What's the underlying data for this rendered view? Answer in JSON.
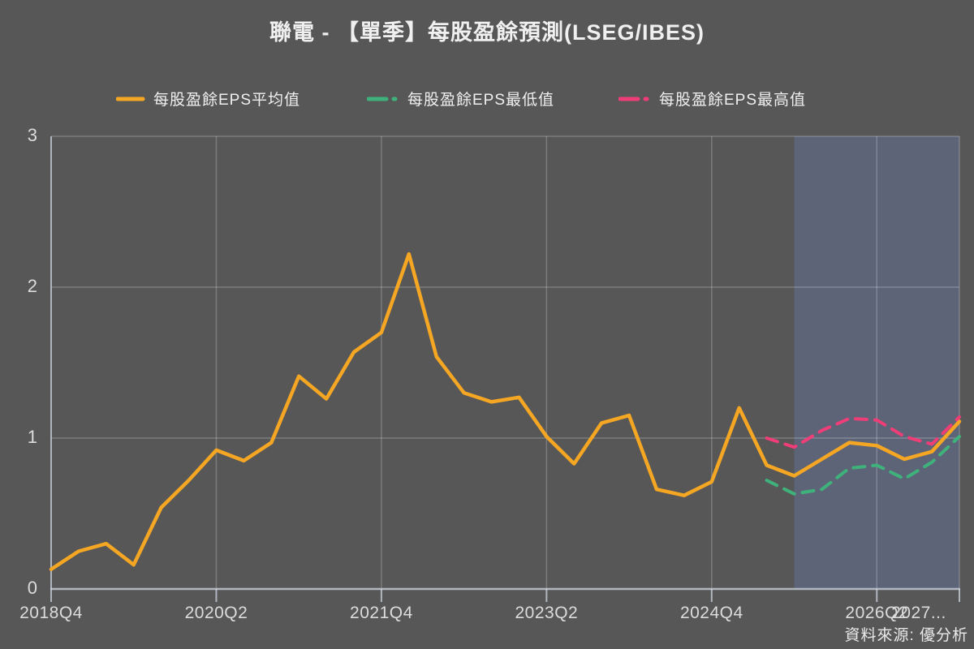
{
  "title": "聯電 - 【單季】每股盈餘預測(LSEG/IBES)",
  "source": "資料來源: 優分析",
  "colors": {
    "background": "#575757",
    "text": "#ECECEC",
    "tick_text": "#DCDCDC",
    "avg_line": "#F5A623",
    "min_line": "#3FB27B",
    "max_line": "#EE3D77",
    "forecast_region": "#5D6478",
    "gridline": "rgba(255,255,255,0.22)",
    "axis": "rgba(205,212,224,0.75)"
  },
  "legend": [
    {
      "label": "每股盈餘EPS平均值",
      "color": "#F5A623",
      "style": "solid"
    },
    {
      "label": "每股盈餘EPS最低值",
      "color": "#3FB27B",
      "style": "dashed"
    },
    {
      "label": "每股盈餘EPS最高值",
      "color": "#EE3D77",
      "style": "dashed"
    }
  ],
  "chart_data": {
    "type": "line",
    "title": "聯電 - 【單季】每股盈餘預測(LSEG/IBES)",
    "xlabel": "",
    "ylabel": "",
    "ylim": [
      0,
      3
    ],
    "y_ticks": [
      0,
      1,
      2,
      3
    ],
    "grid": true,
    "legend_position": "top",
    "categories": [
      "2018Q4",
      "2019Q1",
      "2019Q2",
      "2019Q3",
      "2019Q4",
      "2020Q1",
      "2020Q2",
      "2020Q3",
      "2020Q4",
      "2021Q1",
      "2021Q2",
      "2021Q3",
      "2021Q4",
      "2022Q1",
      "2022Q2",
      "2022Q3",
      "2022Q4",
      "2023Q1",
      "2023Q2",
      "2023Q3",
      "2023Q4",
      "2024Q1",
      "2024Q2",
      "2024Q3",
      "2024Q4",
      "2025Q1",
      "2025Q2",
      "2025Q3",
      "2025Q4",
      "2026Q1",
      "2026Q2",
      "2026Q3",
      "2026Q4",
      "2027Q1"
    ],
    "x_tick_indices": [
      0,
      6,
      12,
      18,
      24,
      30
    ],
    "x_tick_labels": [
      "2018Q4",
      "2020Q2",
      "2021Q4",
      "2023Q2",
      "2024Q4",
      "2026Q2"
    ],
    "x_last_tick_label": "2027...",
    "forecast_start_index": 27,
    "series": [
      {
        "name": "每股盈餘EPS平均值",
        "color": "#F5A623",
        "dash": false,
        "values": [
          0.13,
          0.25,
          0.3,
          0.16,
          0.54,
          0.72,
          0.92,
          0.85,
          0.97,
          1.41,
          1.26,
          1.57,
          1.7,
          2.22,
          1.54,
          1.3,
          1.24,
          1.27,
          1.01,
          0.83,
          1.1,
          1.15,
          0.66,
          0.62,
          0.71,
          1.2,
          0.82,
          0.75,
          0.86,
          0.97,
          0.95,
          0.86,
          0.91,
          1.11
        ]
      },
      {
        "name": "每股盈餘EPS最低值",
        "color": "#3FB27B",
        "dash": true,
        "values": [
          null,
          null,
          null,
          null,
          null,
          null,
          null,
          null,
          null,
          null,
          null,
          null,
          null,
          null,
          null,
          null,
          null,
          null,
          null,
          null,
          null,
          null,
          null,
          null,
          null,
          null,
          0.72,
          0.63,
          0.66,
          0.8,
          0.82,
          0.73,
          0.84,
          1.01
        ]
      },
      {
        "name": "每股盈餘EPS最高值",
        "color": "#EE3D77",
        "dash": true,
        "values": [
          null,
          null,
          null,
          null,
          null,
          null,
          null,
          null,
          null,
          null,
          null,
          null,
          null,
          null,
          null,
          null,
          null,
          null,
          null,
          null,
          null,
          null,
          null,
          null,
          null,
          null,
          1.0,
          0.94,
          1.05,
          1.13,
          1.12,
          1.01,
          0.96,
          1.14
        ]
      }
    ]
  }
}
